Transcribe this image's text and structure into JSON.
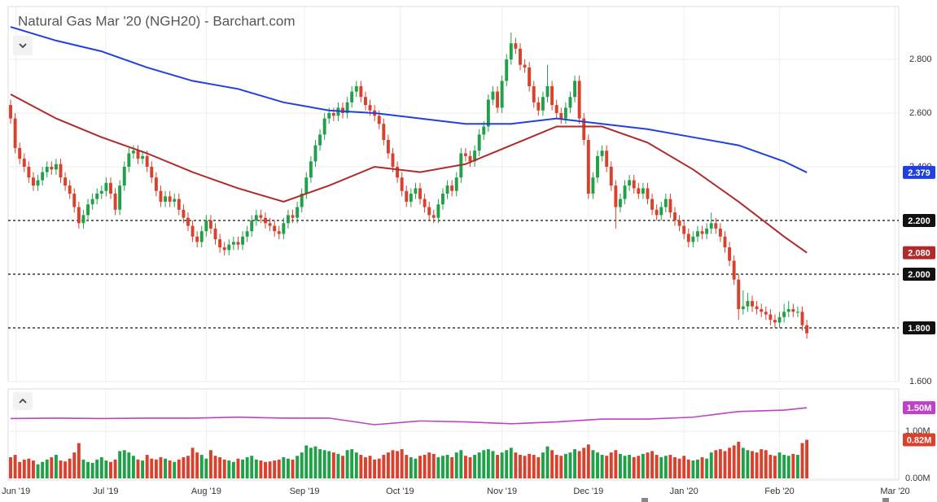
{
  "chart_data": {
    "type": "candlestick",
    "title": "Natural Gas Mar '20 (NGH20) - Barchart.com",
    "colors": {
      "up": "#21a04a",
      "down": "#d9412d"
    },
    "grid": true,
    "open": [
      2.63,
      2.58,
      2.47,
      2.43,
      2.4,
      2.36,
      2.33,
      2.35,
      2.38,
      2.4,
      2.39,
      2.41,
      2.36,
      2.33,
      2.3,
      2.25,
      2.19,
      2.22,
      2.26,
      2.28,
      2.3,
      2.31,
      2.34,
      2.3,
      2.24,
      2.33,
      2.4,
      2.45,
      2.46,
      2.43,
      2.44,
      2.4,
      2.36,
      2.31,
      2.27,
      2.29,
      2.27,
      2.28,
      2.24,
      2.21,
      2.18,
      2.14,
      2.12,
      2.16,
      2.2,
      2.17,
      2.13,
      2.1,
      2.09,
      2.11,
      2.12,
      2.11,
      2.14,
      2.16,
      2.2,
      2.22,
      2.21,
      2.19,
      2.18,
      2.16,
      2.15,
      2.19,
      2.22,
      2.21,
      2.25,
      2.3,
      2.36,
      2.42,
      2.48,
      2.52,
      2.58,
      2.6,
      2.59,
      2.62,
      2.6,
      2.64,
      2.68,
      2.7,
      2.66,
      2.63,
      2.61,
      2.59,
      2.56,
      2.5,
      2.45,
      2.4,
      2.36,
      2.31,
      2.27,
      2.3,
      2.32,
      2.28,
      2.25,
      2.22,
      2.21,
      2.26,
      2.3,
      2.33,
      2.31,
      2.36,
      2.45,
      2.44,
      2.42,
      2.46,
      2.52,
      2.55,
      2.65,
      2.68,
      2.62,
      2.72,
      2.8,
      2.86,
      2.84,
      2.78,
      2.77,
      2.7,
      2.64,
      2.61,
      2.66,
      2.7,
      2.63,
      2.6,
      2.58,
      2.62,
      2.66,
      2.72,
      2.58,
      2.5,
      2.3,
      2.36,
      2.44,
      2.46,
      2.4,
      2.33,
      2.25,
      2.28,
      2.33,
      2.35,
      2.32,
      2.3,
      2.32,
      2.28,
      2.24,
      2.22,
      2.25,
      2.28,
      2.23,
      2.2,
      2.18,
      2.15,
      2.12,
      2.14,
      2.16,
      2.15,
      2.17,
      2.19,
      2.17,
      2.14,
      2.1,
      2.05,
      1.98,
      1.87,
      1.88,
      1.9,
      1.88,
      1.87,
      1.86,
      1.85,
      1.83,
      1.82,
      1.84,
      1.86,
      1.87,
      1.86,
      1.86,
      1.81
    ],
    "high": [
      2.65,
      2.6,
      2.49,
      2.45,
      2.42,
      2.38,
      2.37,
      2.4,
      2.42,
      2.42,
      2.43,
      2.43,
      2.38,
      2.35,
      2.32,
      2.27,
      2.24,
      2.28,
      2.3,
      2.32,
      2.33,
      2.36,
      2.36,
      2.32,
      2.35,
      2.42,
      2.47,
      2.48,
      2.48,
      2.46,
      2.46,
      2.42,
      2.38,
      2.33,
      2.31,
      2.31,
      2.3,
      2.3,
      2.26,
      2.23,
      2.2,
      2.16,
      2.18,
      2.22,
      2.22,
      2.19,
      2.15,
      2.12,
      2.13,
      2.14,
      2.14,
      2.16,
      2.18,
      2.22,
      2.24,
      2.24,
      2.23,
      2.21,
      2.2,
      2.18,
      2.21,
      2.24,
      2.24,
      2.27,
      2.32,
      2.38,
      2.44,
      2.5,
      2.54,
      2.6,
      2.62,
      2.62,
      2.64,
      2.64,
      2.66,
      2.7,
      2.72,
      2.72,
      2.68,
      2.65,
      2.63,
      2.61,
      2.58,
      2.52,
      2.47,
      2.42,
      2.38,
      2.33,
      2.32,
      2.34,
      2.34,
      2.3,
      2.27,
      2.24,
      2.28,
      2.32,
      2.35,
      2.35,
      2.38,
      2.47,
      2.47,
      2.46,
      2.48,
      2.54,
      2.57,
      2.67,
      2.7,
      2.7,
      2.74,
      2.82,
      2.9,
      2.88,
      2.86,
      2.8,
      2.79,
      2.72,
      2.66,
      2.68,
      2.78,
      2.72,
      2.65,
      2.62,
      2.64,
      2.68,
      2.74,
      2.74,
      2.6,
      2.52,
      2.38,
      2.46,
      2.48,
      2.48,
      2.42,
      2.35,
      2.3,
      2.35,
      2.37,
      2.37,
      2.34,
      2.34,
      2.34,
      2.3,
      2.26,
      2.27,
      2.3,
      2.3,
      2.25,
      2.22,
      2.2,
      2.17,
      2.16,
      2.18,
      2.18,
      2.19,
      2.23,
      2.21,
      2.19,
      2.16,
      2.12,
      2.07,
      2.0,
      1.94,
      1.93,
      1.92,
      1.9,
      1.89,
      1.88,
      1.87,
      1.85,
      1.86,
      1.89,
      1.9,
      1.89,
      1.88,
      1.88,
      1.83
    ],
    "low": [
      2.56,
      2.45,
      2.41,
      2.38,
      2.34,
      2.31,
      2.31,
      2.33,
      2.36,
      2.37,
      2.37,
      2.34,
      2.31,
      2.28,
      2.23,
      2.17,
      2.17,
      2.2,
      2.24,
      2.26,
      2.28,
      2.29,
      2.28,
      2.22,
      2.22,
      2.31,
      2.38,
      2.43,
      2.41,
      2.41,
      2.38,
      2.34,
      2.29,
      2.25,
      2.25,
      2.25,
      2.25,
      2.22,
      2.19,
      2.16,
      2.12,
      2.1,
      2.1,
      2.14,
      2.15,
      2.11,
      2.08,
      2.07,
      2.07,
      2.09,
      2.09,
      2.09,
      2.12,
      2.14,
      2.18,
      2.19,
      2.17,
      2.16,
      2.14,
      2.13,
      2.13,
      2.17,
      2.19,
      2.19,
      2.23,
      2.28,
      2.34,
      2.4,
      2.46,
      2.5,
      2.56,
      2.57,
      2.57,
      2.58,
      2.58,
      2.62,
      2.66,
      2.64,
      2.61,
      2.59,
      2.57,
      2.54,
      2.48,
      2.43,
      2.38,
      2.34,
      2.29,
      2.25,
      2.25,
      2.28,
      2.26,
      2.23,
      2.2,
      2.19,
      2.19,
      2.24,
      2.28,
      2.29,
      2.29,
      2.34,
      2.42,
      2.4,
      2.4,
      2.44,
      2.5,
      2.53,
      2.63,
      2.6,
      2.6,
      2.7,
      2.78,
      2.82,
      2.76,
      2.75,
      2.68,
      2.62,
      2.59,
      2.59,
      2.64,
      2.61,
      2.58,
      2.56,
      2.56,
      2.6,
      2.64,
      2.56,
      2.48,
      2.28,
      2.28,
      2.34,
      2.42,
      2.38,
      2.31,
      2.17,
      2.23,
      2.26,
      2.31,
      2.3,
      2.28,
      2.28,
      2.26,
      2.22,
      2.2,
      2.2,
      2.23,
      2.21,
      2.18,
      2.16,
      2.13,
      2.1,
      2.1,
      2.12,
      2.13,
      2.13,
      2.15,
      2.15,
      2.12,
      2.08,
      2.03,
      1.96,
      1.83,
      1.85,
      1.86,
      1.86,
      1.85,
      1.84,
      1.83,
      1.81,
      1.8,
      1.8,
      1.82,
      1.84,
      1.84,
      1.84,
      1.79,
      1.76
    ],
    "close": [
      2.58,
      2.47,
      2.43,
      2.4,
      2.36,
      2.33,
      2.35,
      2.38,
      2.4,
      2.39,
      2.41,
      2.36,
      2.33,
      2.3,
      2.25,
      2.19,
      2.22,
      2.26,
      2.28,
      2.3,
      2.31,
      2.34,
      2.3,
      2.24,
      2.33,
      2.4,
      2.45,
      2.46,
      2.43,
      2.44,
      2.4,
      2.36,
      2.31,
      2.27,
      2.29,
      2.27,
      2.28,
      2.24,
      2.21,
      2.18,
      2.14,
      2.12,
      2.16,
      2.2,
      2.17,
      2.13,
      2.1,
      2.09,
      2.11,
      2.12,
      2.11,
      2.14,
      2.16,
      2.2,
      2.22,
      2.21,
      2.19,
      2.18,
      2.16,
      2.15,
      2.19,
      2.22,
      2.21,
      2.25,
      2.3,
      2.36,
      2.42,
      2.48,
      2.52,
      2.58,
      2.6,
      2.59,
      2.62,
      2.6,
      2.64,
      2.68,
      2.7,
      2.66,
      2.63,
      2.61,
      2.59,
      2.56,
      2.5,
      2.45,
      2.4,
      2.36,
      2.31,
      2.27,
      2.3,
      2.32,
      2.28,
      2.25,
      2.22,
      2.21,
      2.26,
      2.3,
      2.33,
      2.31,
      2.36,
      2.45,
      2.44,
      2.42,
      2.46,
      2.52,
      2.55,
      2.65,
      2.68,
      2.62,
      2.72,
      2.8,
      2.86,
      2.84,
      2.78,
      2.77,
      2.7,
      2.64,
      2.61,
      2.66,
      2.7,
      2.63,
      2.6,
      2.58,
      2.62,
      2.66,
      2.72,
      2.58,
      2.5,
      2.3,
      2.36,
      2.44,
      2.46,
      2.4,
      2.33,
      2.25,
      2.28,
      2.33,
      2.35,
      2.32,
      2.3,
      2.32,
      2.28,
      2.24,
      2.22,
      2.25,
      2.28,
      2.23,
      2.2,
      2.18,
      2.15,
      2.12,
      2.14,
      2.16,
      2.15,
      2.17,
      2.19,
      2.17,
      2.14,
      2.1,
      2.05,
      1.98,
      1.87,
      1.88,
      1.9,
      1.88,
      1.87,
      1.86,
      1.85,
      1.83,
      1.82,
      1.84,
      1.86,
      1.87,
      1.86,
      1.86,
      1.81,
      1.78
    ],
    "xlim": [
      -0.54,
      195.2
    ],
    "xticks": [
      {
        "value": 1.2,
        "label": "Jun '19"
      },
      {
        "value": 20.9,
        "label": "Jul '19"
      },
      {
        "value": 43,
        "label": "Aug '19"
      },
      {
        "value": 64.6,
        "label": "Sep '19"
      },
      {
        "value": 85.6,
        "label": "Oct '19"
      },
      {
        "value": 108,
        "label": "Nov '19"
      },
      {
        "value": 127,
        "label": "Dec '19"
      },
      {
        "value": 148,
        "label": "Jan '20"
      },
      {
        "value": 169,
        "label": "Feb '20"
      },
      {
        "value": 194.4,
        "label": "Mar '20"
      }
    ],
    "ylim": [
      1.6,
      3.0
    ],
    "yticks": [
      {
        "value": 1.6,
        "label": "1.600"
      },
      {
        "value": 2.4,
        "label": "2.400"
      },
      {
        "value": 2.6,
        "label": "2.600"
      },
      {
        "value": 2.8,
        "label": "2.800"
      }
    ],
    "levels": [
      {
        "value": 2.2,
        "label": "2.200"
      },
      {
        "value": 2.0,
        "label": "2.000"
      },
      {
        "value": 1.8,
        "label": "1.800"
      }
    ],
    "moving_averages": [
      {
        "color": "#2040e0",
        "x": [
          0,
          10,
          20,
          30,
          40,
          50,
          60,
          70,
          80,
          90,
          100,
          110,
          120,
          130,
          140,
          150,
          160,
          170,
          175
        ],
        "values": [
          2.921,
          2.87,
          2.83,
          2.77,
          2.72,
          2.69,
          2.64,
          2.61,
          2.6,
          2.58,
          2.56,
          2.56,
          2.58,
          2.56,
          2.54,
          2.51,
          2.48,
          2.42,
          2.379
        ],
        "badge": "2.379"
      },
      {
        "color": "#b02a2a",
        "x": [
          0,
          10,
          20,
          30,
          40,
          50,
          60,
          70,
          80,
          90,
          100,
          110,
          120,
          130,
          140,
          150,
          160,
          170,
          175
        ],
        "values": [
          2.67,
          2.58,
          2.51,
          2.45,
          2.38,
          2.32,
          2.27,
          2.33,
          2.4,
          2.38,
          2.41,
          2.48,
          2.55,
          2.55,
          2.49,
          2.39,
          2.27,
          2.14,
          2.08
        ],
        "badge": "2.080"
      }
    ],
    "volume": {
      "values": [
        0.45,
        0.5,
        0.35,
        0.4,
        0.42,
        0.38,
        0.3,
        0.35,
        0.4,
        0.45,
        0.5,
        0.38,
        0.36,
        0.42,
        0.55,
        0.75,
        0.4,
        0.35,
        0.33,
        0.4,
        0.45,
        0.38,
        0.35,
        0.4,
        0.58,
        0.6,
        0.55,
        0.48,
        0.4,
        0.38,
        0.5,
        0.42,
        0.4,
        0.45,
        0.42,
        0.38,
        0.35,
        0.4,
        0.45,
        0.48,
        0.65,
        0.55,
        0.5,
        0.42,
        0.6,
        0.48,
        0.45,
        0.4,
        0.38,
        0.35,
        0.42,
        0.4,
        0.45,
        0.48,
        0.4,
        0.38,
        0.35,
        0.36,
        0.38,
        0.4,
        0.45,
        0.42,
        0.4,
        0.48,
        0.55,
        0.7,
        0.65,
        0.68,
        0.62,
        0.6,
        0.58,
        0.55,
        0.52,
        0.48,
        0.6,
        0.62,
        0.55,
        0.5,
        0.45,
        0.48,
        0.4,
        0.42,
        0.5,
        0.55,
        0.6,
        0.58,
        0.62,
        0.5,
        0.45,
        0.42,
        0.48,
        0.5,
        0.55,
        0.52,
        0.45,
        0.48,
        0.5,
        0.45,
        0.55,
        0.6,
        0.48,
        0.45,
        0.5,
        0.55,
        0.6,
        0.62,
        0.58,
        0.5,
        0.55,
        0.6,
        0.65,
        0.55,
        0.5,
        0.48,
        0.52,
        0.5,
        0.45,
        0.55,
        0.68,
        0.6,
        0.5,
        0.48,
        0.52,
        0.55,
        0.62,
        0.58,
        0.65,
        0.72,
        0.6,
        0.55,
        0.5,
        0.48,
        0.55,
        0.6,
        0.52,
        0.48,
        0.5,
        0.45,
        0.48,
        0.52,
        0.55,
        0.58,
        0.5,
        0.45,
        0.48,
        0.5,
        0.45,
        0.42,
        0.48,
        0.4,
        0.38,
        0.4,
        0.45,
        0.42,
        0.55,
        0.6,
        0.62,
        0.58,
        0.65,
        0.7,
        0.78,
        0.65,
        0.6,
        0.58,
        0.55,
        0.62,
        0.6,
        0.5,
        0.48,
        0.55,
        0.5,
        0.48,
        0.52,
        0.5,
        0.75,
        0.82
      ],
      "last_label": "0.82M",
      "ylim": [
        0,
        1.9
      ],
      "yticks": [
        {
          "value": 0,
          "label": "0.00M"
        },
        {
          "value": 1,
          "label": "1.00M"
        }
      ],
      "average": {
        "color": "#c040c8",
        "x": [
          0,
          10,
          20,
          30,
          40,
          50,
          60,
          70,
          80,
          90,
          100,
          110,
          120,
          130,
          140,
          150,
          160,
          170,
          175
        ],
        "values": [
          1.27,
          1.28,
          1.27,
          1.28,
          1.28,
          1.3,
          1.28,
          1.28,
          1.14,
          1.22,
          1.2,
          1.16,
          1.2,
          1.26,
          1.26,
          1.3,
          1.42,
          1.45,
          1.5
        ],
        "badge": "1.50M"
      }
    }
  }
}
